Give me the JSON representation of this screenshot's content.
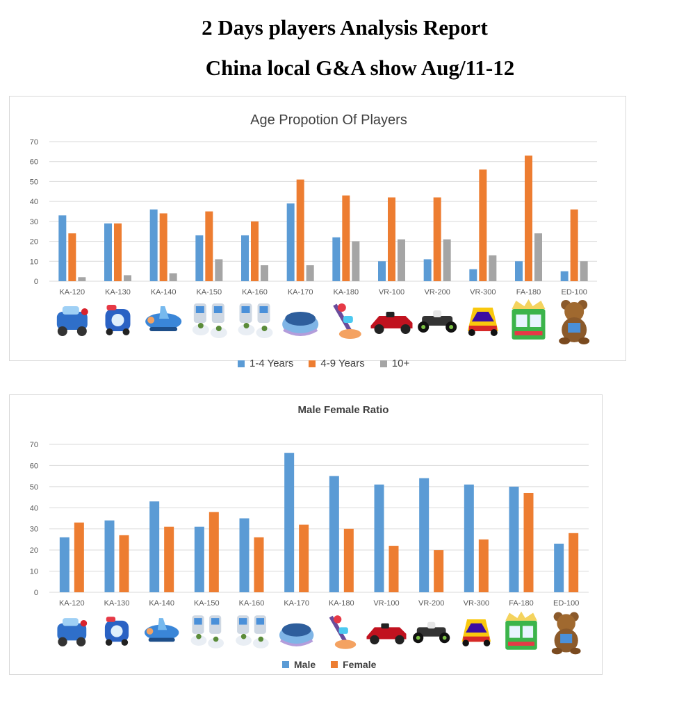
{
  "page": {
    "title_line1": "2 Days players Analysis Report",
    "title_line2": "China local G&A show Aug/11-12"
  },
  "colors": {
    "blue": "#5b9bd5",
    "orange": "#ed7d31",
    "gray": "#a5a5a5",
    "grid": "#d9d9d9",
    "axis_text": "#595959"
  },
  "product_icons": [
    "blue-car-ride-icon",
    "blue-train-ride-icon",
    "blue-airplane-ride-icon",
    "twin-kiddie-ride-icon",
    "twin-kiddie-ride-icon",
    "boat-ride-icon",
    "motorbike-ride-icon",
    "red-race-car-icon",
    "go-kart-icon",
    "colorful-race-car-icon",
    "green-arcade-cabinet-icon",
    "teddy-bear-machine-icon"
  ],
  "chart_data": [
    {
      "type": "bar",
      "title": "Age Propotion Of Players",
      "categories": [
        "KA-120",
        "KA-130",
        "KA-140",
        "KA-150",
        "KA-160",
        "KA-170",
        "KA-180",
        "VR-100",
        "VR-200",
        "VR-300",
        "FA-180",
        "ED-100"
      ],
      "series": [
        {
          "name": "1-4 Years",
          "color": "#5b9bd5",
          "values": [
            33,
            29,
            36,
            23,
            23,
            39,
            22,
            10,
            11,
            6,
            10,
            5
          ]
        },
        {
          "name": "4-9 Years",
          "color": "#ed7d31",
          "values": [
            24,
            29,
            34,
            35,
            30,
            51,
            43,
            42,
            42,
            56,
            63,
            36
          ]
        },
        {
          "name": "10+",
          "color": "#a5a5a5",
          "values": [
            2,
            3,
            4,
            11,
            8,
            8,
            20,
            21,
            21,
            13,
            24,
            10
          ]
        }
      ],
      "yticks": [
        "0",
        "10",
        "20",
        "30",
        "40",
        "50",
        "60",
        "70"
      ],
      "ylim": [
        0,
        70
      ],
      "grid": true,
      "legend": "bottom",
      "xlabel": "",
      "ylabel": ""
    },
    {
      "type": "bar",
      "title": "Male Female Ratio",
      "categories": [
        "KA-120",
        "KA-130",
        "KA-140",
        "KA-150",
        "KA-160",
        "KA-170",
        "KA-180",
        "VR-100",
        "VR-200",
        "VR-300",
        "FA-180",
        "ED-100"
      ],
      "series": [
        {
          "name": "Male",
          "color": "#5b9bd5",
          "values": [
            26,
            34,
            43,
            31,
            35,
            66,
            55,
            51,
            54,
            51,
            50,
            23
          ]
        },
        {
          "name": "Female",
          "color": "#ed7d31",
          "values": [
            33,
            27,
            31,
            38,
            26,
            32,
            30,
            22,
            20,
            25,
            47,
            28
          ]
        }
      ],
      "yticks": [
        "0",
        "10",
        "20",
        "30",
        "40",
        "50",
        "60",
        "70"
      ],
      "ylim": [
        0,
        70
      ],
      "grid": true,
      "legend": "bottom",
      "xlabel": "",
      "ylabel": ""
    }
  ]
}
